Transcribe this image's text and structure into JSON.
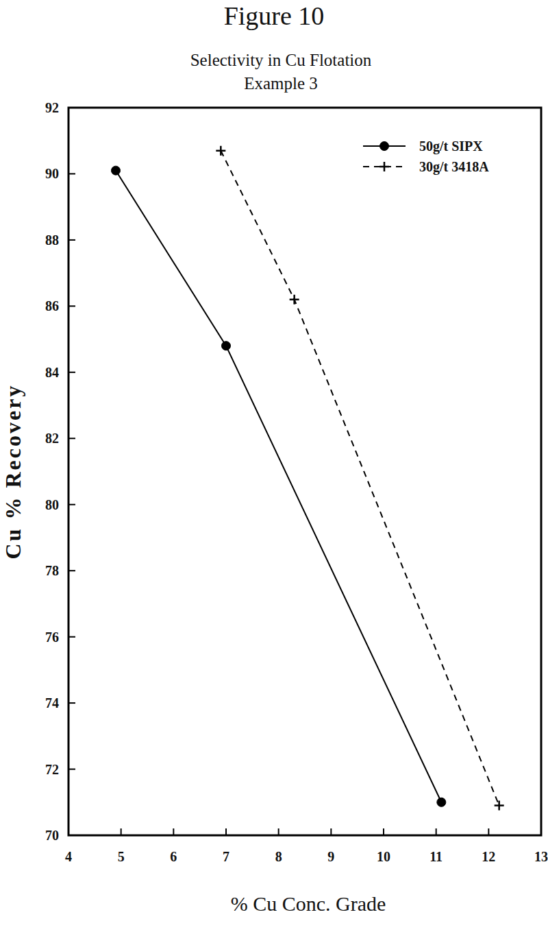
{
  "chart_data": {
    "type": "line",
    "title": "Figure 10",
    "subtitle": [
      "Selectivity in Cu Flotation",
      "Example 3"
    ],
    "x_label": "% Cu Conc. Grade",
    "y_label": "Cu % Recovery",
    "xlim": [
      4,
      13
    ],
    "xticks": [
      4,
      5,
      6,
      7,
      8,
      9,
      10,
      11,
      12,
      13
    ],
    "ylim": [
      70,
      92
    ],
    "yticks": [
      70,
      72,
      74,
      76,
      78,
      80,
      82,
      84,
      86,
      88,
      90,
      92
    ],
    "grid": false,
    "legend": "upper right",
    "series": [
      {
        "name": "50g/t SIPX",
        "color": "#000000",
        "marker": "circle",
        "line_style": "solid",
        "x": [
          4.9,
          7.0,
          11.1
        ],
        "values": [
          90.1,
          84.8,
          71.0
        ]
      },
      {
        "name": "30g/t 3418A",
        "color": "#000000",
        "marker": "plus",
        "line_style": "dashed",
        "x": [
          6.9,
          8.3,
          12.2
        ],
        "values": [
          90.7,
          86.2,
          70.9
        ]
      }
    ]
  }
}
